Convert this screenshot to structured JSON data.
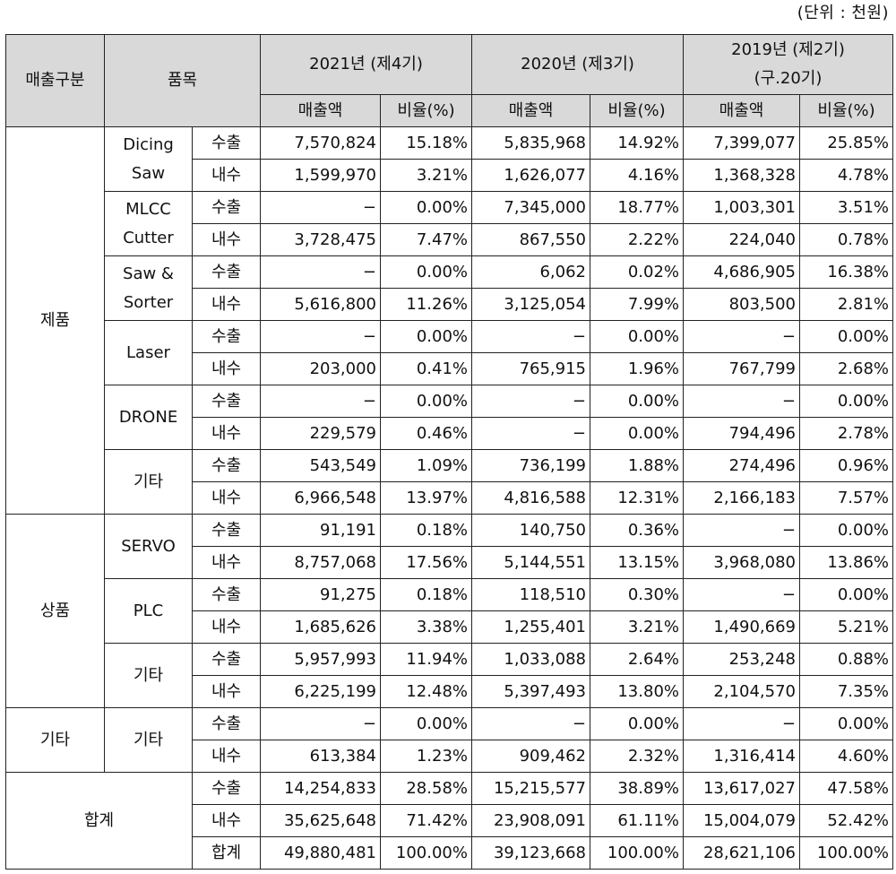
{
  "unit_note": "(단위 : 천원)",
  "header": {
    "category": "매출구분",
    "item": "품목",
    "years": [
      {
        "label": "2021년 (제4기)"
      },
      {
        "label": "2020년 (제3기)"
      },
      {
        "label_line1": "2019년 (제2기)",
        "label_line2": "(구.20기)"
      }
    ],
    "sales": "매출액",
    "ratio": "비율(%)"
  },
  "groups": [
    {
      "category": "제품",
      "items": [
        {
          "line1": "Dicing",
          "line2": "Saw",
          "rows": [
            {
              "type": "수출",
              "v": [
                "7,570,824",
                "15.18%",
                "5,835,968",
                "14.92%",
                "7,399,077",
                "25.85%"
              ]
            },
            {
              "type": "내수",
              "v": [
                "1,599,970",
                "3.21%",
                "1,626,077",
                "4.16%",
                "1,368,328",
                "4.78%"
              ]
            }
          ]
        },
        {
          "line1": "MLCC",
          "line2": "Cutter",
          "rows": [
            {
              "type": "수출",
              "v": [
                "−",
                "0.00%",
                "7,345,000",
                "18.77%",
                "1,003,301",
                "3.51%"
              ]
            },
            {
              "type": "내수",
              "v": [
                "3,728,475",
                "7.47%",
                "867,550",
                "2.22%",
                "224,040",
                "0.78%"
              ]
            }
          ]
        },
        {
          "line1": "Saw &",
          "line2": "Sorter",
          "rows": [
            {
              "type": "수출",
              "v": [
                "−",
                "0.00%",
                "6,062",
                "0.02%",
                "4,686,905",
                "16.38%"
              ]
            },
            {
              "type": "내수",
              "v": [
                "5,616,800",
                "11.26%",
                "3,125,054",
                "7.99%",
                "803,500",
                "2.81%"
              ]
            }
          ]
        },
        {
          "line1": "Laser",
          "line2": "",
          "rows": [
            {
              "type": "수출",
              "v": [
                "−",
                "0.00%",
                "−",
                "0.00%",
                "−",
                "0.00%"
              ]
            },
            {
              "type": "내수",
              "v": [
                "203,000",
                "0.41%",
                "765,915",
                "1.96%",
                "767,799",
                "2.68%"
              ]
            }
          ]
        },
        {
          "line1": "DRONE",
          "line2": "",
          "rows": [
            {
              "type": "수출",
              "v": [
                "−",
                "0.00%",
                "−",
                "0.00%",
                "−",
                "0.00%"
              ]
            },
            {
              "type": "내수",
              "v": [
                "229,579",
                "0.46%",
                "−",
                "0.00%",
                "794,496",
                "2.78%"
              ]
            }
          ]
        },
        {
          "line1": "기타",
          "line2": "",
          "rows": [
            {
              "type": "수출",
              "v": [
                "543,549",
                "1.09%",
                "736,199",
                "1.88%",
                "274,496",
                "0.96%"
              ]
            },
            {
              "type": "내수",
              "v": [
                "6,966,548",
                "13.97%",
                "4,816,588",
                "12.31%",
                "2,166,183",
                "7.57%"
              ]
            }
          ]
        }
      ]
    },
    {
      "category": "상품",
      "items": [
        {
          "line1": "SERVO",
          "line2": "",
          "rows": [
            {
              "type": "수출",
              "v": [
                "91,191",
                "0.18%",
                "140,750",
                "0.36%",
                "−",
                "0.00%"
              ]
            },
            {
              "type": "내수",
              "v": [
                "8,757,068",
                "17.56%",
                "5,144,551",
                "13.15%",
                "3,968,080",
                "13.86%"
              ]
            }
          ]
        },
        {
          "line1": "PLC",
          "line2": "",
          "rows": [
            {
              "type": "수출",
              "v": [
                "91,275",
                "0.18%",
                "118,510",
                "0.30%",
                "−",
                "0.00%"
              ]
            },
            {
              "type": "내수",
              "v": [
                "1,685,626",
                "3.38%",
                "1,255,401",
                "3.21%",
                "1,490,669",
                "5.21%"
              ]
            }
          ]
        },
        {
          "line1": "기타",
          "line2": "",
          "rows": [
            {
              "type": "수출",
              "v": [
                "5,957,993",
                "11.94%",
                "1,033,088",
                "2.64%",
                "253,248",
                "0.88%"
              ]
            },
            {
              "type": "내수",
              "v": [
                "6,225,199",
                "12.48%",
                "5,397,493",
                "13.80%",
                "2,104,570",
                "7.35%"
              ]
            }
          ]
        }
      ]
    },
    {
      "category": "기타",
      "items": [
        {
          "line1": "기타",
          "line2": "",
          "rows": [
            {
              "type": "수출",
              "v": [
                "−",
                "0.00%",
                "−",
                "0.00%",
                "−",
                "0.00%"
              ]
            },
            {
              "type": "내수",
              "v": [
                "613,384",
                "1.23%",
                "909,462",
                "2.32%",
                "1,316,414",
                "4.60%"
              ]
            }
          ]
        }
      ]
    }
  ],
  "total": {
    "label": "합계",
    "rows": [
      {
        "type": "수출",
        "v": [
          "14,254,833",
          "28.58%",
          "15,215,577",
          "38.89%",
          "13,617,027",
          "47.58%"
        ]
      },
      {
        "type": "내수",
        "v": [
          "35,625,648",
          "71.42%",
          "23,908,091",
          "61.11%",
          "15,004,079",
          "52.42%"
        ]
      },
      {
        "type": "합계",
        "v": [
          "49,880,481",
          "100.00%",
          "39,123,668",
          "100.00%",
          "28,621,106",
          "100.00%"
        ]
      }
    ]
  }
}
